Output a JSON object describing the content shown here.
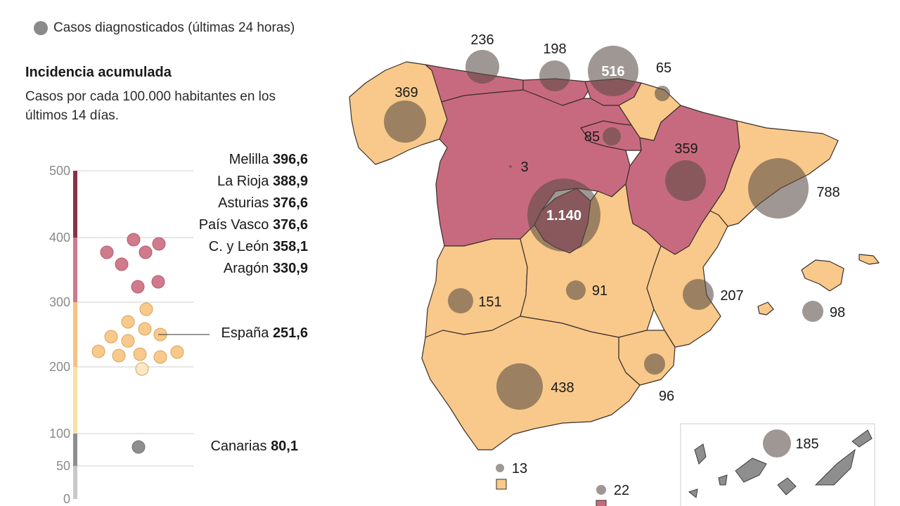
{
  "legend": {
    "cases_label": "Casos diagnosticados (últimas 24 horas)"
  },
  "incidence": {
    "title": "Incidencia acumulada",
    "subtitle": "Casos por cada 100.000 habitantes en los últimos 14 días."
  },
  "scale": {
    "ticks": [
      "500",
      "400",
      "300",
      "200",
      "100",
      "50",
      "0"
    ]
  },
  "top_regions": [
    {
      "name": "Melilla",
      "value": "396,6"
    },
    {
      "name": "La Rioja",
      "value": "388,9"
    },
    {
      "name": "Asturias",
      "value": "376,6"
    },
    {
      "name": "País Vasco",
      "value": "376,6"
    },
    {
      "name": "C. y León",
      "value": "358,1"
    },
    {
      "name": "Aragón",
      "value": "330,9"
    }
  ],
  "spain": {
    "name": "España",
    "value": "251,6"
  },
  "canarias": {
    "name": "Canarias",
    "value": "80,1"
  },
  "map_cases": {
    "asturias": "236",
    "cantabria": "198",
    "pais_vasco": "516",
    "navarra": "65",
    "galicia": "369",
    "la_rioja": "85",
    "castilla_leon": "3",
    "aragon": "359",
    "cataluna": "788",
    "madrid": "1.140",
    "extremadura": "151",
    "castilla_la_mancha": "91",
    "valencia": "207",
    "baleares": "98",
    "murcia": "96",
    "andalucia": "438",
    "canarias": "185",
    "ceuta": "13",
    "melilla": "22"
  },
  "colors": {
    "high": "#c86a7f",
    "mid": "#f8c98a",
    "low": "#a7a7a7",
    "bubble": "#6a5a52",
    "scale_top": "#8c3045",
    "scale_pink": "#d0798c",
    "scale_orange": "#f3c37f",
    "scale_yellow": "#f7e2a5",
    "scale_gray": "#8e8e8e",
    "scale_light": "#c8c8c8"
  }
}
